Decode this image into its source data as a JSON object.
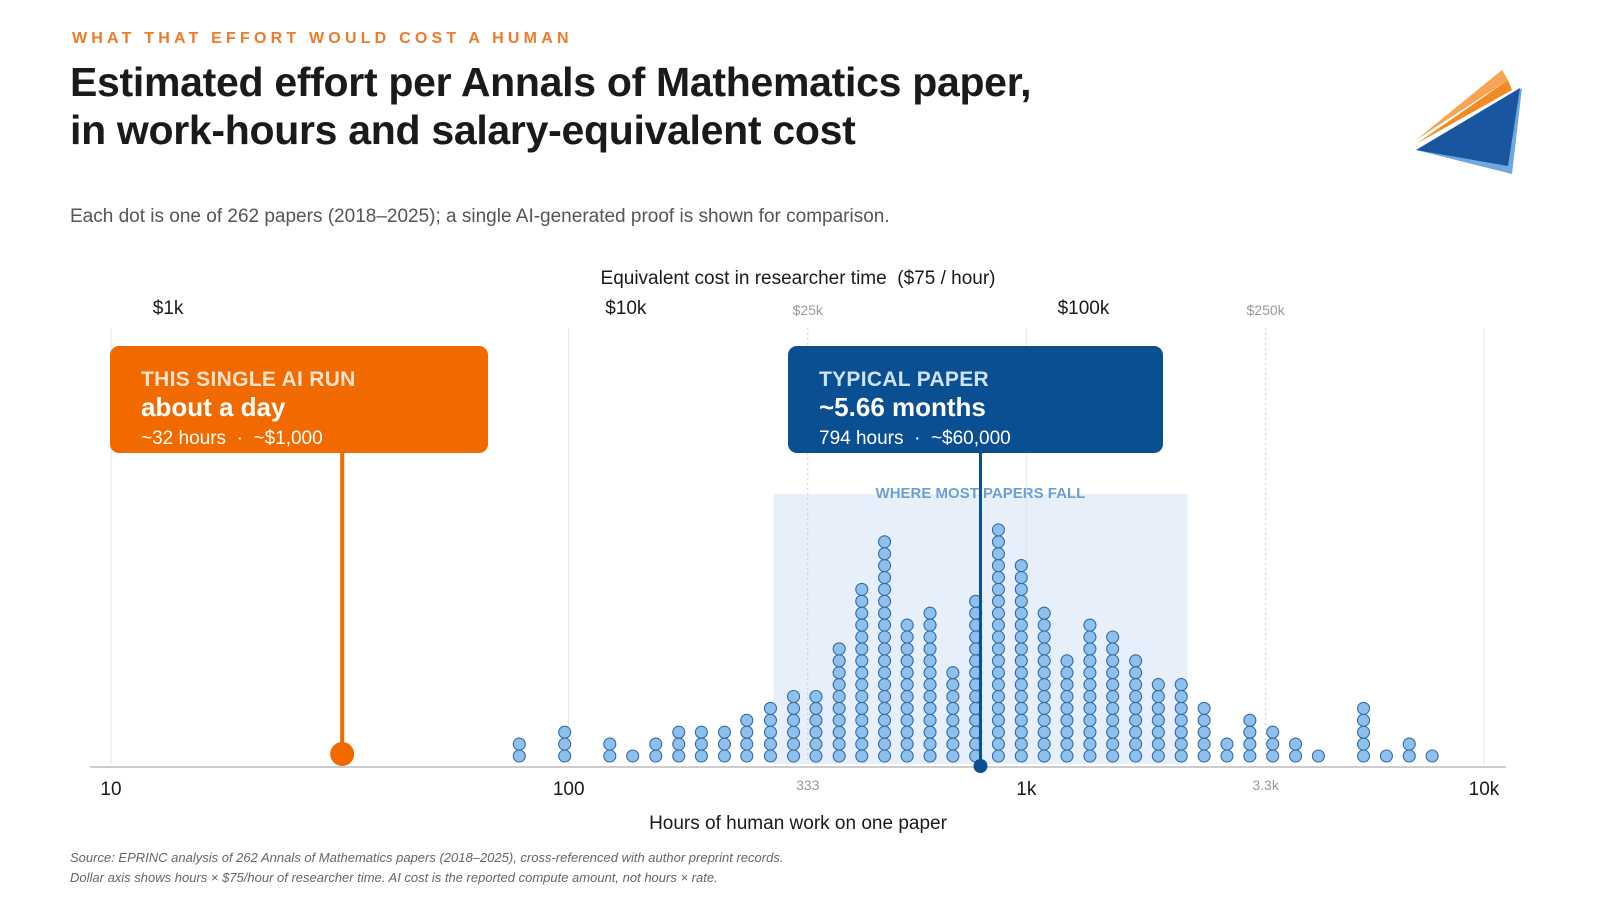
{
  "header": {
    "eyebrow": "WHAT THAT EFFORT WOULD COST A HUMAN",
    "title_line1": "Estimated effort per Annals of Mathematics paper,",
    "title_line2": "in work-hours and salary-equivalent cost",
    "subtitle": "Each dot is one of 262 papers (2018–2025); a single AI-generated proof is shown for comparison."
  },
  "logo": {
    "icon": "paper-plane-logo-icon",
    "colors": [
      "#1a56a0",
      "#6fa8dc",
      "#f08a24"
    ]
  },
  "callouts": {
    "ai": {
      "kicker": "THIS SINGLE AI RUN",
      "headline": "about a day",
      "detail": "~32 hours  ·  ~$1,000"
    },
    "paper": {
      "kicker": "TYPICAL PAPER",
      "headline": "~5.66 months",
      "detail": "794 hours  ·  ~$60,000"
    }
  },
  "footnotes": {
    "line1": "Source: EPRINC analysis of 262 Annals of Mathematics papers (2018–2025), cross-referenced with author preprint records.",
    "line2": "Dollar axis shows hours × $75/hour of researcher time. AI cost is the reported compute amount, not hours × rate."
  },
  "colors": {
    "ai": "#f06a00",
    "paper": "#0b4f93",
    "dot_fill": "#8fc0ec",
    "dot_stroke": "#2f6aa8",
    "band": "#e7f0fa",
    "band_label": "#6a9fd4",
    "grid": "#e4e4e4",
    "minor_grid": "#cccccc",
    "axis": "#bbbbbb"
  },
  "chart_data": {
    "type": "dot-histogram",
    "xscale": "log",
    "xlim": [
      10,
      10000
    ],
    "xlabel": "Hours of human work on one paper",
    "x_major_ticks": [
      {
        "value": 10,
        "label": "10"
      },
      {
        "value": 100,
        "label": "100"
      },
      {
        "value": 1000,
        "label": "1k"
      },
      {
        "value": 10000,
        "label": "10k"
      }
    ],
    "x_minor_ticks": [
      {
        "value": 333,
        "label": "333"
      },
      {
        "value": 3333,
        "label": "3.3k"
      }
    ],
    "top_axis_title": "Equivalent cost in researcher time  ($75 / hour)",
    "top_major_ticks": [
      {
        "value": 13.33,
        "label": "$1k"
      },
      {
        "value": 133.3,
        "label": "$10k"
      },
      {
        "value": 1333,
        "label": "$100k"
      }
    ],
    "top_minor_ticks": [
      {
        "value": 333,
        "label": "$25k"
      },
      {
        "value": 3333,
        "label": "$250k"
      }
    ],
    "band": {
      "label": "WHERE MOST PAPERS FALL",
      "from_hours": 280,
      "to_hours": 2250
    },
    "ai_marker": {
      "hours": 32
    },
    "typical_marker": {
      "hours": 794
    },
    "columns": [
      {
        "hours": 78,
        "count": 2
      },
      {
        "hours": 98,
        "count": 3
      },
      {
        "hours": 123,
        "count": 2
      },
      {
        "hours": 138,
        "count": 1
      },
      {
        "hours": 155,
        "count": 2
      },
      {
        "hours": 174,
        "count": 3
      },
      {
        "hours": 195,
        "count": 3
      },
      {
        "hours": 219,
        "count": 3
      },
      {
        "hours": 245,
        "count": 4
      },
      {
        "hours": 276,
        "count": 5
      },
      {
        "hours": 310,
        "count": 6
      },
      {
        "hours": 347,
        "count": 6
      },
      {
        "hours": 390,
        "count": 10
      },
      {
        "hours": 437,
        "count": 15
      },
      {
        "hours": 490,
        "count": 19
      },
      {
        "hours": 549,
        "count": 12
      },
      {
        "hours": 616,
        "count": 13
      },
      {
        "hours": 691,
        "count": 8
      },
      {
        "hours": 775,
        "count": 14
      },
      {
        "hours": 869,
        "count": 20
      },
      {
        "hours": 975,
        "count": 17
      },
      {
        "hours": 1094,
        "count": 13
      },
      {
        "hours": 1227,
        "count": 9
      },
      {
        "hours": 1377,
        "count": 12
      },
      {
        "hours": 1544,
        "count": 11
      },
      {
        "hours": 1733,
        "count": 9
      },
      {
        "hours": 1943,
        "count": 7
      },
      {
        "hours": 2180,
        "count": 7
      },
      {
        "hours": 2446,
        "count": 5
      },
      {
        "hours": 2744,
        "count": 2
      },
      {
        "hours": 3079,
        "count": 4
      },
      {
        "hours": 3454,
        "count": 3
      },
      {
        "hours": 3875,
        "count": 2
      },
      {
        "hours": 4347,
        "count": 1
      },
      {
        "hours": 5455,
        "count": 5
      },
      {
        "hours": 6120,
        "count": 1
      },
      {
        "hours": 6866,
        "count": 2
      },
      {
        "hours": 7703,
        "count": 1
      }
    ]
  }
}
